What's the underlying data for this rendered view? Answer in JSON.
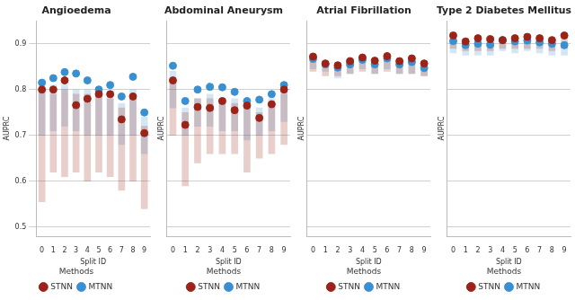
{
  "chart_data": [
    {
      "type": "scatter",
      "title": "Angioedema",
      "x_label": "Split ID",
      "y_label": "AUPRC",
      "x": [
        0,
        1,
        2,
        3,
        4,
        5,
        6,
        7,
        8,
        9
      ],
      "xlim": [
        -0.5,
        9.5
      ],
      "xticks": [
        0,
        1,
        2,
        3,
        4,
        5,
        6,
        7,
        8,
        9
      ],
      "ylim": [
        0.48,
        0.95
      ],
      "yticks": [
        0.5,
        0.6,
        0.7,
        0.8,
        0.9
      ],
      "grid": "y",
      "legend": "bottom",
      "legend_title": "Methods",
      "series": [
        {
          "name": "STNN",
          "color": "#9b2318",
          "values": [
            0.8,
            0.8,
            0.82,
            0.766,
            0.78,
            0.79,
            0.79,
            0.735,
            0.785,
            0.705
          ],
          "ranges": [
            [
              0.555,
              0.8
            ],
            [
              0.62,
              0.79
            ],
            [
              0.61,
              0.8
            ],
            [
              0.62,
              0.79
            ],
            [
              0.6,
              0.79
            ],
            [
              0.62,
              0.79
            ],
            [
              0.61,
              0.78
            ],
            [
              0.58,
              0.76
            ],
            [
              0.6,
              0.78
            ],
            [
              0.54,
              0.72
            ]
          ]
        },
        {
          "name": "MTNN",
          "color": "#3a8fd1",
          "values": [
            0.815,
            0.825,
            0.838,
            0.835,
            0.82,
            0.8,
            0.81,
            0.785,
            0.828,
            0.75
          ],
          "ranges": [
            [
              0.7,
              0.8
            ],
            [
              0.71,
              0.81
            ],
            [
              0.72,
              0.81
            ],
            [
              0.71,
              0.8
            ],
            [
              0.7,
              0.8
            ],
            [
              0.7,
              0.79
            ],
            [
              0.7,
              0.79
            ],
            [
              0.68,
              0.77
            ],
            [
              0.7,
              0.8
            ],
            [
              0.66,
              0.74
            ]
          ]
        }
      ]
    },
    {
      "type": "scatter",
      "title": "Abdominal Aneurysm",
      "x_label": "Split ID",
      "y_label": "AUPRC",
      "x": [
        0,
        1,
        2,
        3,
        4,
        5,
        6,
        7,
        8,
        9
      ],
      "xlim": [
        -0.5,
        9.5
      ],
      "xticks": [
        0,
        1,
        2,
        3,
        4,
        5,
        6,
        7,
        8,
        9
      ],
      "ylim": [
        0.48,
        0.95
      ],
      "yticks": [
        0.5,
        0.6,
        0.7,
        0.8,
        0.9
      ],
      "grid": "y",
      "tick_labels": "x",
      "legend": "bottom",
      "legend_title": "Methods",
      "series": [
        {
          "name": "STNN",
          "color": "#9b2318",
          "values": [
            0.82,
            0.723,
            0.762,
            0.76,
            0.775,
            0.755,
            0.765,
            0.738,
            0.768,
            0.8
          ],
          "ranges": [
            [
              0.7,
              0.82
            ],
            [
              0.59,
              0.75
            ],
            [
              0.64,
              0.78
            ],
            [
              0.66,
              0.78
            ],
            [
              0.66,
              0.78
            ],
            [
              0.66,
              0.77
            ],
            [
              0.62,
              0.76
            ],
            [
              0.65,
              0.75
            ],
            [
              0.66,
              0.77
            ],
            [
              0.68,
              0.8
            ]
          ]
        },
        {
          "name": "MTNN",
          "color": "#3a8fd1",
          "values": [
            0.852,
            0.775,
            0.8,
            0.806,
            0.805,
            0.795,
            0.775,
            0.778,
            0.79,
            0.81
          ],
          "ranges": [
            [
              0.76,
              0.84
            ],
            [
              0.7,
              0.76
            ],
            [
              0.72,
              0.78
            ],
            [
              0.72,
              0.79
            ],
            [
              0.71,
              0.78
            ],
            [
              0.71,
              0.78
            ],
            [
              0.69,
              0.76
            ],
            [
              0.7,
              0.76
            ],
            [
              0.71,
              0.78
            ],
            [
              0.73,
              0.79
            ]
          ]
        }
      ]
    },
    {
      "type": "scatter",
      "title": "Atrial Fibrillation",
      "x_label": "Split ID",
      "y_label": "AUPRC",
      "x": [
        0,
        1,
        2,
        3,
        4,
        5,
        6,
        7,
        8,
        9
      ],
      "xlim": [
        -0.5,
        9.5
      ],
      "xticks": [
        0,
        1,
        2,
        3,
        4,
        5,
        6,
        7,
        8,
        9
      ],
      "ylim": [
        0.48,
        0.95
      ],
      "yticks": [
        0.5,
        0.6,
        0.7,
        0.8,
        0.9
      ],
      "grid": "y",
      "tick_labels": "x",
      "legend": "bottom",
      "legend_title": "Methods",
      "series": [
        {
          "name": "STNN",
          "color": "#9b2318",
          "values": [
            0.872,
            0.857,
            0.853,
            0.862,
            0.87,
            0.863,
            0.873,
            0.862,
            0.868,
            0.857
          ],
          "ranges": [
            [
              0.84,
              0.87
            ],
            [
              0.83,
              0.86
            ],
            [
              0.83,
              0.855
            ],
            [
              0.835,
              0.86
            ],
            [
              0.84,
              0.87
            ],
            [
              0.835,
              0.86
            ],
            [
              0.84,
              0.87
            ],
            [
              0.835,
              0.86
            ],
            [
              0.835,
              0.865
            ],
            [
              0.83,
              0.855
            ]
          ]
        },
        {
          "name": "MTNN",
          "color": "#3a8fd1",
          "values": [
            0.867,
            0.855,
            0.848,
            0.855,
            0.865,
            0.855,
            0.868,
            0.855,
            0.86,
            0.847
          ],
          "ranges": [
            [
              0.845,
              0.865
            ],
            [
              0.84,
              0.855
            ],
            [
              0.825,
              0.85
            ],
            [
              0.835,
              0.855
            ],
            [
              0.845,
              0.865
            ],
            [
              0.835,
              0.855
            ],
            [
              0.845,
              0.865
            ],
            [
              0.835,
              0.855
            ],
            [
              0.835,
              0.86
            ],
            [
              0.83,
              0.85
            ]
          ]
        }
      ]
    },
    {
      "type": "scatter",
      "title": "Type 2 Diabetes Mellitus",
      "x_label": "Split ID",
      "y_label": "AUPRC",
      "x": [
        0,
        1,
        2,
        3,
        4,
        5,
        6,
        7,
        8,
        9
      ],
      "xlim": [
        -0.5,
        9.5
      ],
      "xticks": [
        0,
        1,
        2,
        3,
        4,
        5,
        6,
        7,
        8,
        9
      ],
      "ylim": [
        0.48,
        0.95
      ],
      "yticks": [
        0.5,
        0.6,
        0.7,
        0.8,
        0.9
      ],
      "grid": "y",
      "tick_labels": "x",
      "legend": "bottom",
      "legend_title": "Methods",
      "series": [
        {
          "name": "STNN",
          "color": "#9b2318",
          "values": [
            0.918,
            0.905,
            0.912,
            0.91,
            0.908,
            0.912,
            0.915,
            0.912,
            0.908,
            0.918
          ],
          "ranges": [
            [
              0.89,
              0.915
            ],
            [
              0.885,
              0.905
            ],
            [
              0.885,
              0.91
            ],
            [
              0.885,
              0.91
            ],
            [
              0.89,
              0.91
            ],
            [
              0.89,
              0.91
            ],
            [
              0.89,
              0.915
            ],
            [
              0.89,
              0.91
            ],
            [
              0.885,
              0.905
            ],
            [
              0.89,
              0.915
            ]
          ]
        },
        {
          "name": "MTNN",
          "color": "#3a8fd1",
          "values": [
            0.906,
            0.897,
            0.9,
            0.898,
            0.908,
            0.905,
            0.907,
            0.903,
            0.9,
            0.897
          ],
          "ranges": [
            [
              0.88,
              0.905
            ],
            [
              0.875,
              0.895
            ],
            [
              0.875,
              0.9
            ],
            [
              0.875,
              0.895
            ],
            [
              0.885,
              0.905
            ],
            [
              0.88,
              0.9
            ],
            [
              0.885,
              0.905
            ],
            [
              0.88,
              0.9
            ],
            [
              0.875,
              0.9
            ],
            [
              0.875,
              0.895
            ]
          ]
        }
      ]
    }
  ]
}
